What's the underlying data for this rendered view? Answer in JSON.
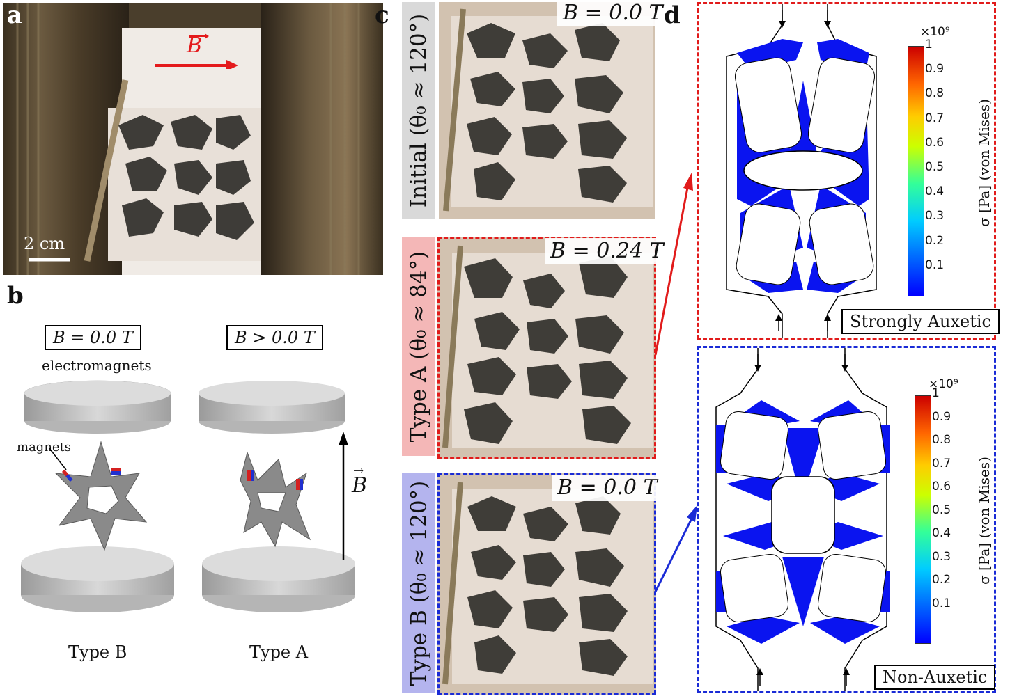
{
  "panels": {
    "a": {
      "letter": "a",
      "field_vector": "B",
      "scale_bar": "2 cm"
    },
    "b": {
      "letter": "b",
      "state_left": "B = 0.0 T",
      "state_right": "B > 0.0 T",
      "electromagnets_label": "electromagnets",
      "magnets_label": "magnets",
      "field_arrow": "B",
      "caption_left": "Type B",
      "caption_right": "Type A"
    },
    "c": {
      "letter": "c",
      "rows": [
        {
          "label": "Initial (θ₀ ≈ 120°)",
          "field": "B = 0.0 T",
          "bg": "#d9d9d9",
          "border": ""
        },
        {
          "label": "Type A (θ₀ ≈ 84°)",
          "field": "B = 0.24 T",
          "bg": "#f4b7b7",
          "border": "#e11b1b"
        },
        {
          "label": "Type B (θ₀ ≈ 120°)",
          "field": "B = 0.0 T",
          "bg": "#b4b4ee",
          "border": "#1a2bd6"
        }
      ]
    },
    "d": {
      "letter": "d",
      "colorbar_exponent": "×10⁹",
      "colorbar_label": "σ [Pa] (von Mises)",
      "ticks": [
        "1",
        "0.9",
        "0.8",
        "0.7",
        "0.6",
        "0.5",
        "0.4",
        "0.3",
        "0.2",
        "0.1"
      ],
      "top_label": "Strongly Auxetic",
      "bottom_label": "Non-Auxetic",
      "top_border": "#e11b1b",
      "bottom_border": "#1a2bd6"
    }
  }
}
